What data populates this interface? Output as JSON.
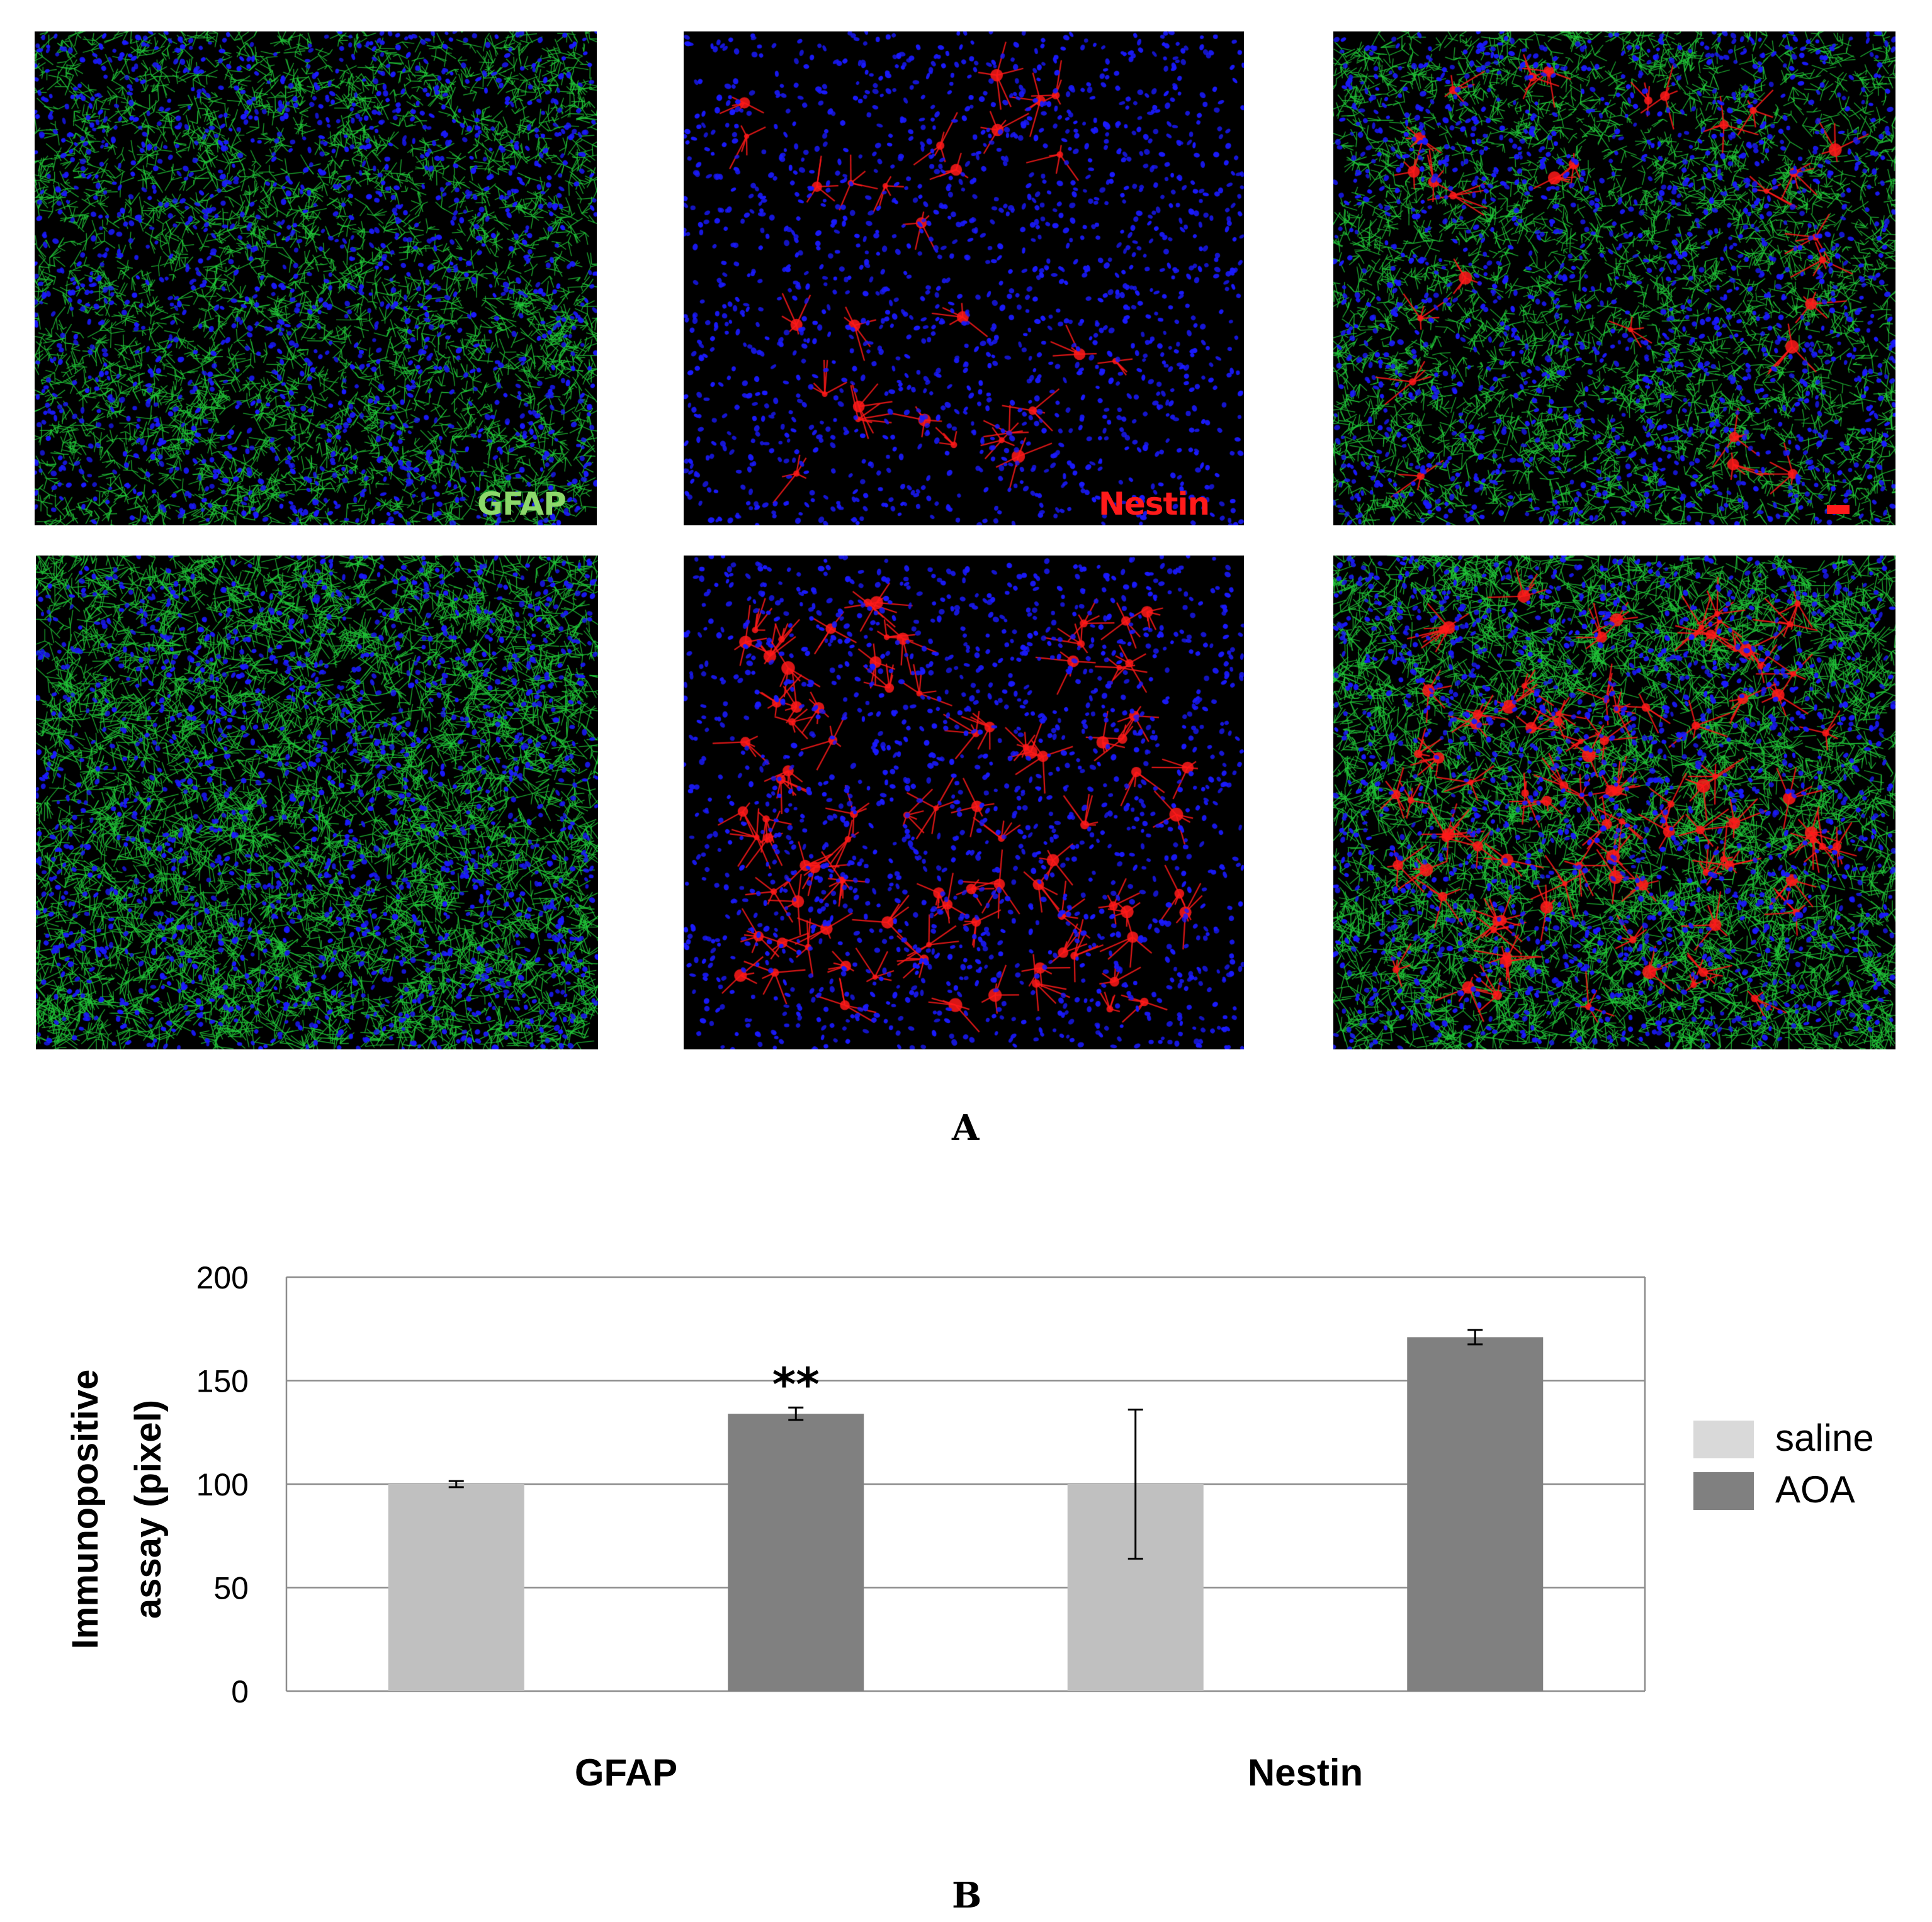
{
  "panel_a": {
    "letter": "A",
    "images": [
      {
        "row": 0,
        "col": 0,
        "stain": "green",
        "density": "normal",
        "label": "GFAP"
      },
      {
        "row": 0,
        "col": 1,
        "stain": "red",
        "density": "sparse",
        "label": "Nestin"
      },
      {
        "row": 0,
        "col": 2,
        "stain": "merge",
        "density": "sparse",
        "label": ""
      },
      {
        "row": 1,
        "col": 0,
        "stain": "green",
        "density": "dense",
        "label": ""
      },
      {
        "row": 1,
        "col": 1,
        "stain": "red",
        "density": "dense",
        "label": ""
      },
      {
        "row": 1,
        "col": 2,
        "stain": "merge",
        "density": "dense",
        "label": ""
      }
    ],
    "colors": {
      "nuclei": "#1a1aff",
      "gfap": "#22c83a",
      "nestin": "#ff1a1a",
      "gfap_label": "#8cd86a",
      "nestin_label": "#ff1a1a"
    }
  },
  "panel_b": {
    "letter": "B",
    "legend": [
      {
        "name": "saline",
        "color": "#c0c0c0",
        "swatch": "#d9d9d9"
      },
      {
        "name": "AOA",
        "color": "#808080",
        "swatch": "#808080"
      }
    ],
    "significance": "**"
  },
  "chart_data": {
    "type": "bar",
    "ylabel": "Immunopositive assay (pixel)",
    "xlabel": "",
    "ylim": [
      0,
      200
    ],
    "yticks": [
      0,
      50,
      100,
      150,
      200
    ],
    "groups": [
      "GFAP",
      "Nestin"
    ],
    "grid": true,
    "legend_position": "right",
    "bars": [
      {
        "group": "GFAP",
        "series": "saline",
        "value": 100,
        "error": 1.5
      },
      {
        "group": "GFAP",
        "series": "AOA",
        "value": 134,
        "error": 3,
        "annotation": "**"
      },
      {
        "group": "Nestin",
        "series": "saline",
        "value": 100,
        "error": 36
      },
      {
        "group": "Nestin",
        "series": "AOA",
        "value": 171,
        "error": 3.5
      }
    ]
  }
}
